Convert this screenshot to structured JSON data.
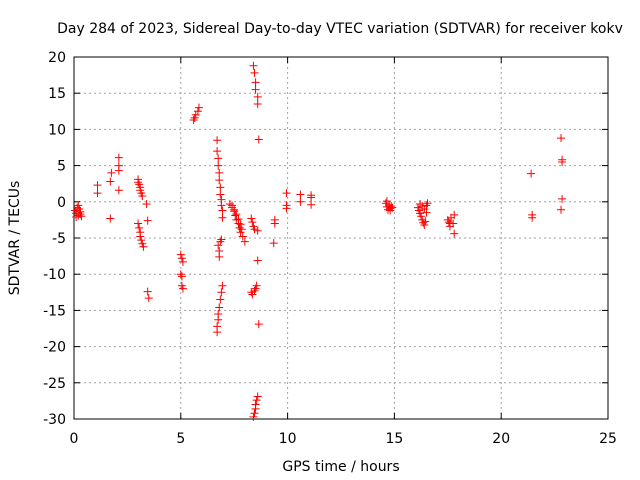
{
  "chart_data": {
    "type": "scatter",
    "title": "Day 284 of 2023, Sidereal Day-to-day VTEC variation (SDTVAR) for receiver kokv",
    "xlabel": "GPS time / hours",
    "ylabel": "SDTVAR / TECUs",
    "xlim": [
      0,
      25
    ],
    "ylim": [
      -30,
      20
    ],
    "xticks": [
      0,
      5,
      10,
      15,
      20,
      25
    ],
    "yticks": [
      -30,
      -25,
      -20,
      -15,
      -10,
      -5,
      0,
      5,
      10,
      15,
      20
    ],
    "grid": true,
    "marker": "+",
    "color": "#ff0000",
    "points": [
      [
        0.05,
        -1.2
      ],
      [
        0.1,
        -1.6
      ],
      [
        0.15,
        -0.8
      ],
      [
        0.2,
        -1.9
      ],
      [
        0.25,
        -1.0
      ],
      [
        0.3,
        -1.4
      ],
      [
        0.35,
        -2.0
      ],
      [
        0.1,
        -2.1
      ],
      [
        0.2,
        -0.5
      ],
      [
        0.3,
        -1.7
      ],
      [
        1.1,
        2.3
      ],
      [
        1.1,
        1.2
      ],
      [
        1.7,
        2.8
      ],
      [
        1.75,
        4.0
      ],
      [
        1.7,
        -2.3
      ],
      [
        2.1,
        6.1
      ],
      [
        2.1,
        5.0
      ],
      [
        2.1,
        4.3
      ],
      [
        2.1,
        1.6
      ],
      [
        3.0,
        3.1
      ],
      [
        3.0,
        2.7
      ],
      [
        3.05,
        2.4
      ],
      [
        3.1,
        2.0
      ],
      [
        3.1,
        1.6
      ],
      [
        3.15,
        1.2
      ],
      [
        3.2,
        0.8
      ],
      [
        3.0,
        -3.0
      ],
      [
        3.05,
        -3.6
      ],
      [
        3.1,
        -4.2
      ],
      [
        3.1,
        -4.8
      ],
      [
        3.15,
        -5.3
      ],
      [
        3.2,
        -5.8
      ],
      [
        3.25,
        -6.2
      ],
      [
        3.4,
        -0.3
      ],
      [
        3.45,
        -2.6
      ],
      [
        3.45,
        -12.4
      ],
      [
        3.5,
        -13.3
      ],
      [
        5.0,
        -7.3
      ],
      [
        5.05,
        -7.8
      ],
      [
        5.1,
        -8.3
      ],
      [
        5.0,
        -10.0
      ],
      [
        5.05,
        -10.3
      ],
      [
        5.05,
        -11.6
      ],
      [
        5.1,
        -12.0
      ],
      [
        5.6,
        11.3
      ],
      [
        5.65,
        11.6
      ],
      [
        5.7,
        12.0
      ],
      [
        5.8,
        12.5
      ],
      [
        5.85,
        13.0
      ],
      [
        6.7,
        8.5
      ],
      [
        6.7,
        7.0
      ],
      [
        6.75,
        6.0
      ],
      [
        6.75,
        5.0
      ],
      [
        6.8,
        4.0
      ],
      [
        6.8,
        3.0
      ],
      [
        6.85,
        2.0
      ],
      [
        6.85,
        1.0
      ],
      [
        6.9,
        0.3
      ],
      [
        6.9,
        -0.5
      ],
      [
        6.95,
        -1.2
      ],
      [
        6.95,
        -2.2
      ],
      [
        6.75,
        -6.0
      ],
      [
        6.8,
        -6.8
      ],
      [
        6.8,
        -7.6
      ],
      [
        6.85,
        -5.5
      ],
      [
        6.9,
        -5.2
      ],
      [
        6.7,
        -18.0
      ],
      [
        6.7,
        -17.2
      ],
      [
        6.75,
        -16.3
      ],
      [
        6.75,
        -15.5
      ],
      [
        6.8,
        -14.6
      ],
      [
        6.85,
        -13.5
      ],
      [
        6.9,
        -12.5
      ],
      [
        6.95,
        -11.6
      ],
      [
        7.3,
        -0.3
      ],
      [
        7.4,
        -0.8
      ],
      [
        7.5,
        -1.3
      ],
      [
        7.55,
        -1.9
      ],
      [
        7.6,
        -2.5
      ],
      [
        7.7,
        -3.0
      ],
      [
        7.75,
        -3.6
      ],
      [
        7.8,
        -4.2
      ],
      [
        7.9,
        -4.8
      ],
      [
        8.0,
        -5.5
      ],
      [
        7.4,
        -0.5
      ],
      [
        7.5,
        -1.1
      ],
      [
        7.6,
        -1.7
      ],
      [
        7.7,
        -2.4
      ],
      [
        7.8,
        -3.1
      ],
      [
        7.85,
        -3.8
      ],
      [
        8.3,
        -2.3
      ],
      [
        8.35,
        -2.8
      ],
      [
        8.4,
        -3.4
      ],
      [
        8.45,
        -3.8
      ],
      [
        8.6,
        -4.0
      ],
      [
        8.3,
        -12.5
      ],
      [
        8.35,
        -12.8
      ],
      [
        8.45,
        -12.3
      ],
      [
        8.5,
        -12.0
      ],
      [
        8.55,
        -11.6
      ],
      [
        8.4,
        18.8
      ],
      [
        8.45,
        17.8
      ],
      [
        8.5,
        16.5
      ],
      [
        8.5,
        15.5
      ],
      [
        8.6,
        14.5
      ],
      [
        8.6,
        13.5
      ],
      [
        8.65,
        8.6
      ],
      [
        8.6,
        -8.1
      ],
      [
        8.65,
        -16.9
      ],
      [
        8.4,
        -29.7
      ],
      [
        8.45,
        -29.2
      ],
      [
        8.5,
        -28.6
      ],
      [
        8.5,
        -28.0
      ],
      [
        8.55,
        -27.4
      ],
      [
        8.6,
        -26.9
      ],
      [
        9.4,
        -2.5
      ],
      [
        9.4,
        -3.0
      ],
      [
        9.35,
        -5.7
      ],
      [
        9.95,
        1.2
      ],
      [
        9.95,
        -0.5
      ],
      [
        9.95,
        -0.9
      ],
      [
        10.6,
        1.0
      ],
      [
        10.6,
        0.0
      ],
      [
        11.1,
        0.9
      ],
      [
        11.1,
        0.6
      ],
      [
        11.1,
        -0.4
      ],
      [
        14.6,
        -0.2
      ],
      [
        14.65,
        -0.7
      ],
      [
        14.7,
        -1.1
      ],
      [
        14.75,
        -0.4
      ],
      [
        14.8,
        -0.9
      ],
      [
        14.85,
        -0.6
      ],
      [
        14.9,
        -0.8
      ],
      [
        14.65,
        0.1
      ],
      [
        14.8,
        -1.2
      ],
      [
        16.1,
        -0.8
      ],
      [
        16.15,
        -1.2
      ],
      [
        16.2,
        -1.6
      ],
      [
        16.25,
        -2.0
      ],
      [
        16.3,
        -2.5
      ],
      [
        16.35,
        -2.9
      ],
      [
        16.4,
        -3.2
      ],
      [
        16.45,
        -2.7
      ],
      [
        16.5,
        -0.5
      ],
      [
        16.55,
        -0.2
      ],
      [
        16.2,
        -0.3
      ],
      [
        16.3,
        -0.6
      ],
      [
        16.4,
        -1.0
      ],
      [
        16.5,
        -1.5
      ],
      [
        17.5,
        -2.5
      ],
      [
        17.55,
        -2.8
      ],
      [
        17.6,
        -3.0
      ],
      [
        17.6,
        -3.4
      ],
      [
        17.65,
        -2.2
      ],
      [
        17.75,
        -3.0
      ],
      [
        17.8,
        -4.4
      ],
      [
        17.8,
        -1.8
      ],
      [
        21.4,
        3.9
      ],
      [
        21.45,
        -1.8
      ],
      [
        21.45,
        -2.2
      ],
      [
        22.8,
        8.8
      ],
      [
        22.85,
        5.8
      ],
      [
        22.85,
        5.5
      ],
      [
        22.85,
        0.4
      ],
      [
        22.8,
        -1.1
      ]
    ]
  }
}
